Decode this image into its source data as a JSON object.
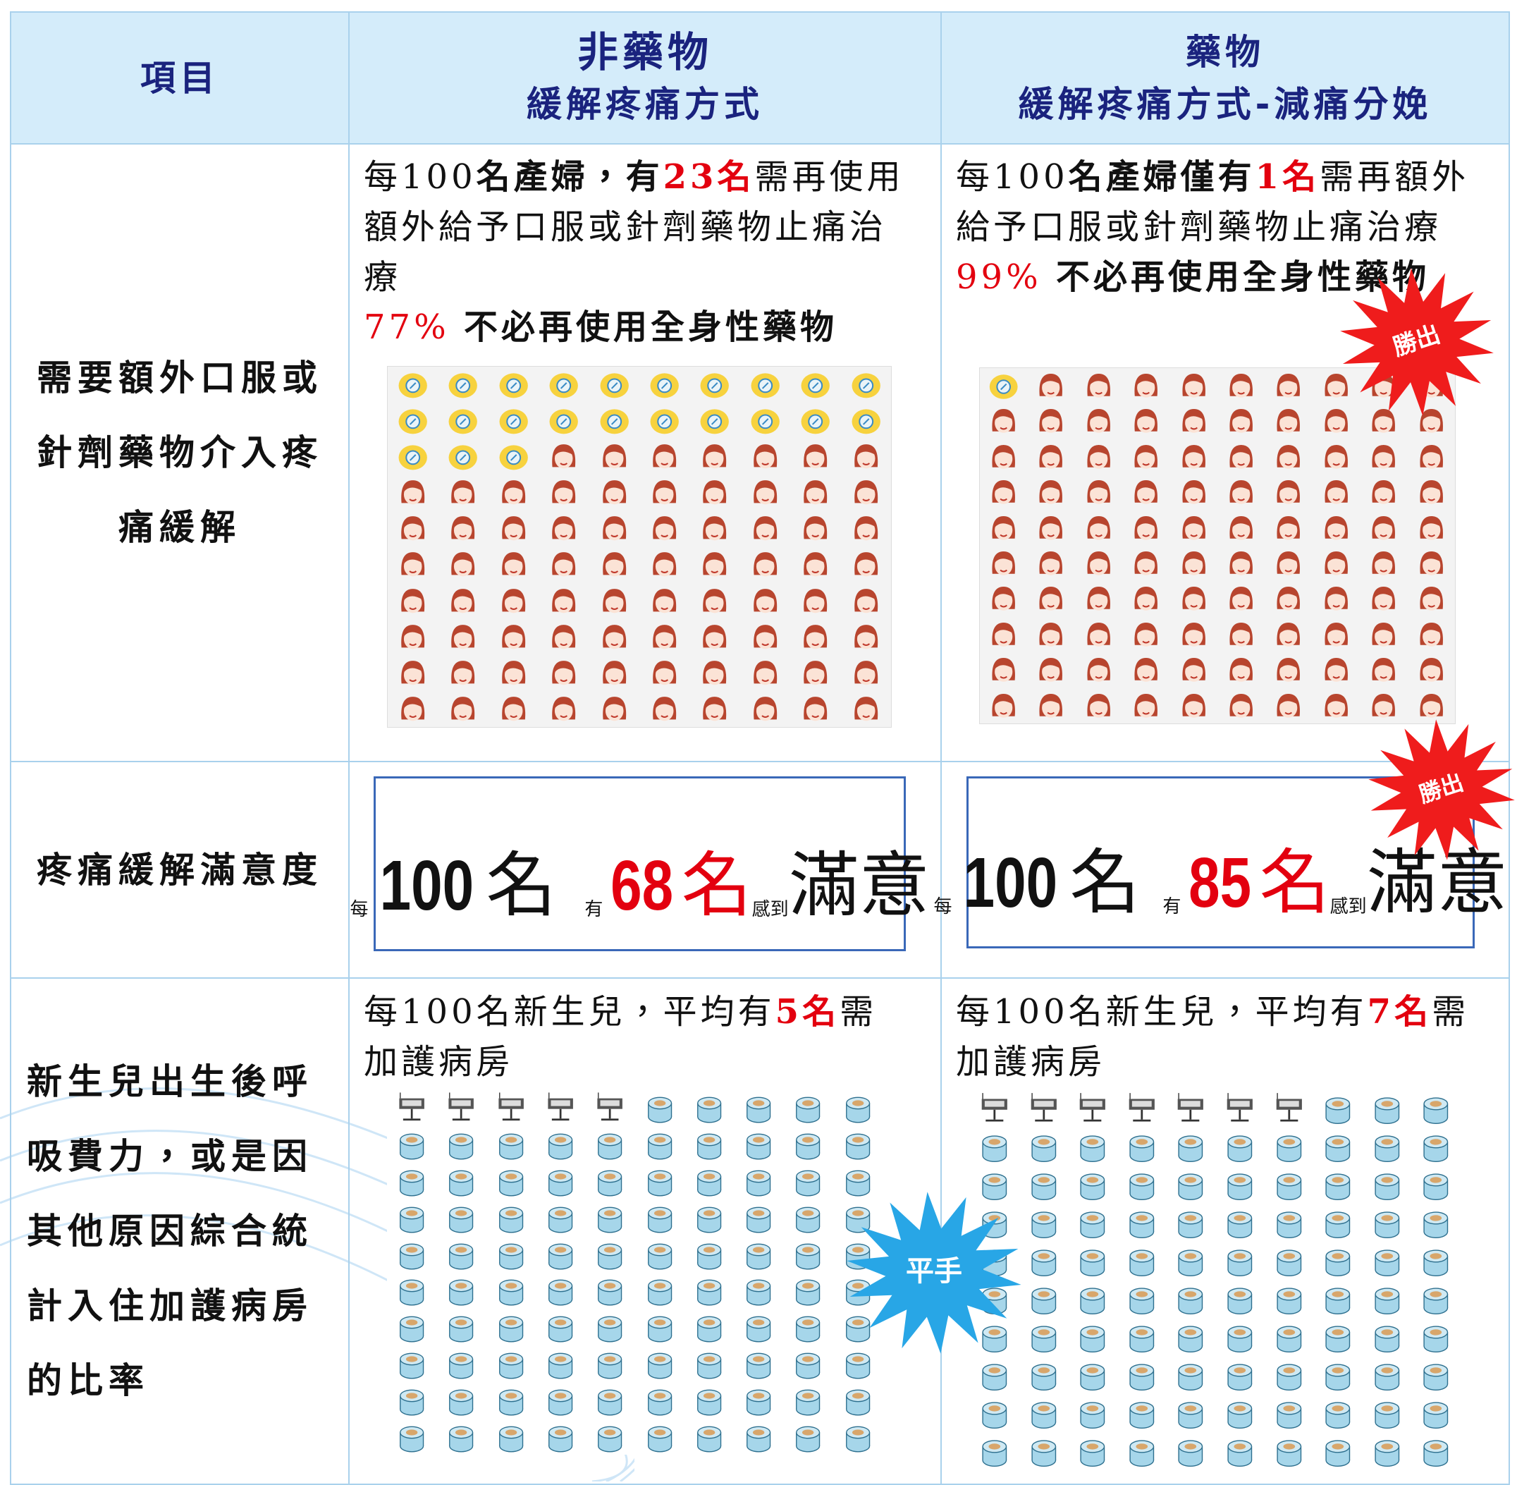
{
  "header": {
    "item": "項目",
    "nonDrug": {
      "title": "非藥物",
      "subtitle": "緩解疼痛方式"
    },
    "drug": {
      "title": "藥物",
      "subtitle": "緩解疼痛方式-減痛分娩"
    }
  },
  "rows": [
    {
      "label": "需要額外口服或針劑藥物介入疼痛緩解",
      "cells": [
        {
          "lead": "每",
          "total": 100,
          "mid": "名產婦，有",
          "count": 23,
          "unit": "名",
          "tail": "需再使用額外給予口服或針劑藥物止痛治療",
          "percent": "77%",
          "note": "不必再使用全身性藥物"
        },
        {
          "lead": "每",
          "total": 100,
          "mid": "名產婦僅有",
          "count": 1,
          "unit": "名",
          "tail": "需再額外給予口服或針劑藥物止痛治療",
          "percent": "99%",
          "note": "不必再使用全身性藥物"
        }
      ],
      "badge": "勝出"
    },
    {
      "label": "疼痛緩解滿意度",
      "cells": [
        {
          "lead": "每",
          "total": 100,
          "unit1": "名",
          "has": "有",
          "count": 68,
          "unit2": "名",
          "felt": "感到",
          "word": "滿意"
        },
        {
          "lead": "每",
          "total": 100,
          "unit1": "名",
          "has": "有",
          "count": 85,
          "unit2": "名",
          "felt": "感到",
          "word": "滿意"
        }
      ],
      "badge": "勝出"
    },
    {
      "label": "新生兒出生後呼吸費力，或是因其他原因綜合統計入住加護病房的比率",
      "cells": [
        {
          "lead": "每",
          "total": 100,
          "mid": "名新生兒，平均有",
          "count": 5,
          "unit": "名",
          "tail": "需加護病房"
        },
        {
          "lead": "每",
          "total": 100,
          "mid": "名新生兒，平均有",
          "count": 7,
          "unit": "名",
          "tail": "需加護病房"
        }
      ],
      "badge": "平手"
    }
  ]
}
